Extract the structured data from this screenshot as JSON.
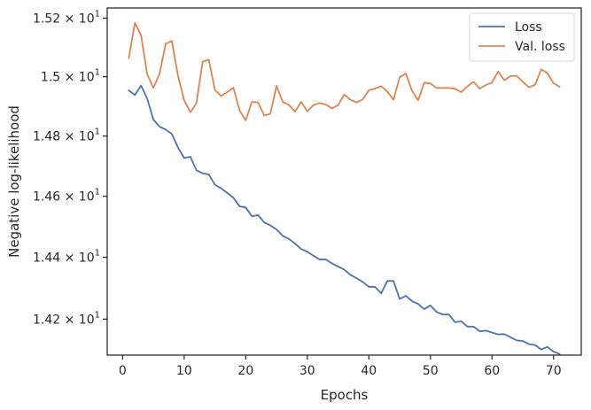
{
  "chart_data": {
    "type": "line",
    "title": "",
    "xlabel": "Epochs",
    "ylabel": "Negative log-likelihood",
    "xlim": [
      -2.5,
      74.5
    ],
    "ylim": [
      14.085,
      15.235
    ],
    "yscale": "log",
    "grid": false,
    "legend_position": "top-right",
    "x_ticks": [
      0,
      10,
      20,
      30,
      40,
      50,
      60,
      70
    ],
    "x_tick_labels": [
      "0",
      "10",
      "20",
      "30",
      "40",
      "50",
      "60",
      "70"
    ],
    "y_ticks": [
      14.2,
      14.4,
      14.6,
      14.8,
      15.0,
      15.2
    ],
    "y_tick_labels": [
      {
        "mantissa": "1.42",
        "exp": "1"
      },
      {
        "mantissa": "1.44",
        "exp": "1"
      },
      {
        "mantissa": "1.46",
        "exp": "1"
      },
      {
        "mantissa": "1.48",
        "exp": "1"
      },
      {
        "mantissa": "1.5",
        "exp": "1"
      },
      {
        "mantissa": "1.52",
        "exp": "1"
      }
    ],
    "x": [
      1,
      2,
      3,
      4,
      5,
      6,
      7,
      8,
      9,
      10,
      11,
      12,
      13,
      14,
      15,
      16,
      17,
      18,
      19,
      20,
      21,
      22,
      23,
      24,
      25,
      26,
      27,
      28,
      29,
      30,
      31,
      32,
      33,
      34,
      35,
      36,
      37,
      38,
      39,
      40,
      41,
      42,
      43,
      44,
      45,
      46,
      47,
      48,
      49,
      50,
      51,
      52,
      53,
      54,
      55,
      56,
      57,
      58,
      59,
      60,
      61,
      62,
      63,
      64,
      65,
      66,
      67,
      68,
      69,
      70,
      71
    ],
    "series": [
      {
        "name": "Loss",
        "color": "#4c72b0",
        "values": [
          14.954,
          14.938,
          14.97,
          14.926,
          14.855,
          14.832,
          14.822,
          14.807,
          14.762,
          14.727,
          14.731,
          14.686,
          14.676,
          14.672,
          14.638,
          14.626,
          14.611,
          14.595,
          14.567,
          14.563,
          14.534,
          14.538,
          14.514,
          14.504,
          14.491,
          14.47,
          14.46,
          14.445,
          14.427,
          14.418,
          14.405,
          14.393,
          14.393,
          14.38,
          14.37,
          14.36,
          14.343,
          14.332,
          14.32,
          14.304,
          14.304,
          14.283,
          14.323,
          14.323,
          14.265,
          14.275,
          14.258,
          14.249,
          14.232,
          14.244,
          14.223,
          14.215,
          14.215,
          14.19,
          14.193,
          14.176,
          14.176,
          14.161,
          14.163,
          14.157,
          14.151,
          14.152,
          14.142,
          14.132,
          14.13,
          14.12,
          14.117,
          14.103,
          14.111,
          14.096,
          14.088
        ]
      },
      {
        "name": "Val. loss",
        "color": "#dd8452",
        "values": [
          15.063,
          15.184,
          15.141,
          15.008,
          14.962,
          15.01,
          15.112,
          15.122,
          15.003,
          14.92,
          14.88,
          14.911,
          15.051,
          15.058,
          14.955,
          14.935,
          14.948,
          14.963,
          14.886,
          14.853,
          14.915,
          14.913,
          14.869,
          14.875,
          14.969,
          14.915,
          14.905,
          14.882,
          14.915,
          14.883,
          14.904,
          14.911,
          14.906,
          14.893,
          14.904,
          14.94,
          14.922,
          14.913,
          14.923,
          14.954,
          14.96,
          14.968,
          14.95,
          14.922,
          14.998,
          15.011,
          14.953,
          14.92,
          14.98,
          14.977,
          14.962,
          14.962,
          14.962,
          14.959,
          14.948,
          14.967,
          14.983,
          14.96,
          14.972,
          14.98,
          15.018,
          14.988,
          15.002,
          15.003,
          14.983,
          14.964,
          14.973,
          15.025,
          15.012,
          14.978,
          14.966
        ]
      }
    ]
  }
}
